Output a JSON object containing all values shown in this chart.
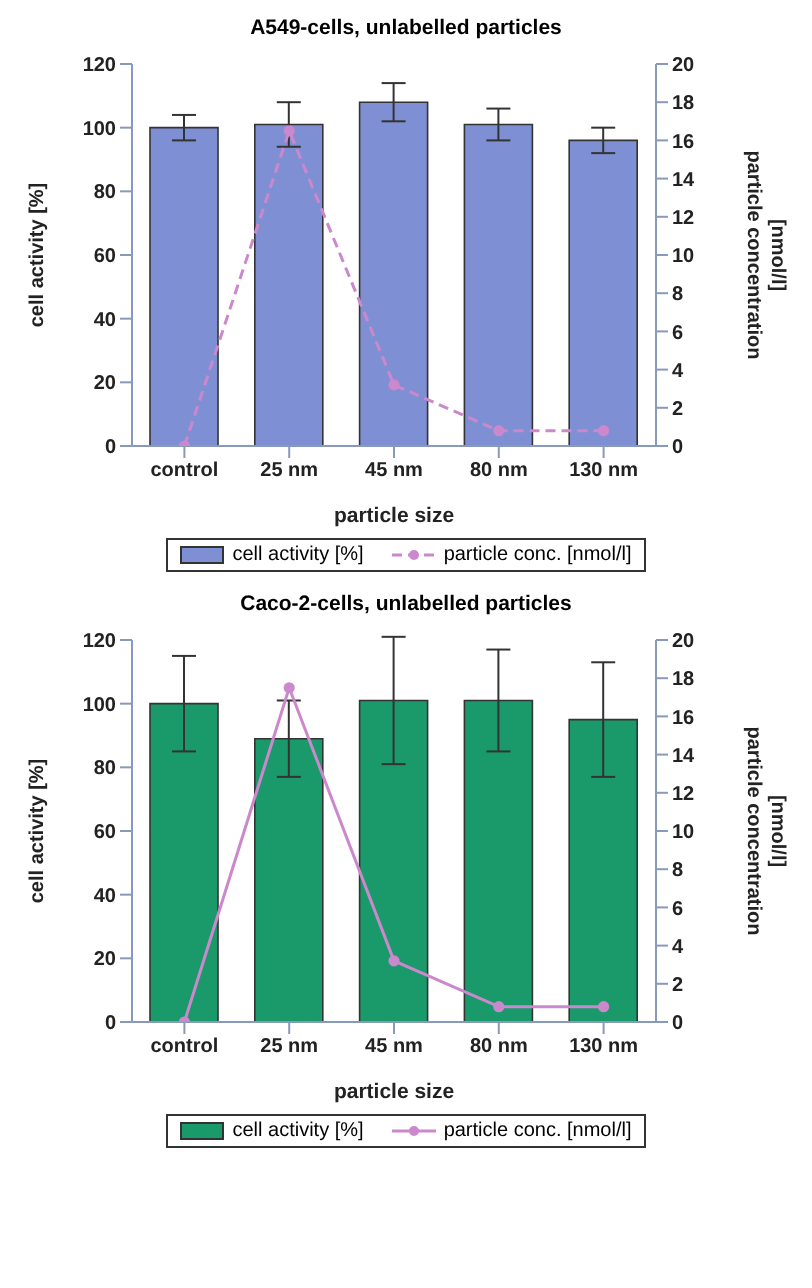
{
  "chart_data": [
    {
      "type": "bar",
      "title": "A549-cells, unlabelled particles",
      "xlabel": "particle size",
      "ylabel": "cell activity [%]",
      "y2label": "particle concentration [nmol/l]",
      "categories": [
        "control",
        "25 nm",
        "45 nm",
        "80 nm",
        "130 nm"
      ],
      "series": [
        {
          "name": "cell activity [%]",
          "color": "#7f8fd4",
          "values": [
            100,
            101,
            108,
            101,
            96
          ],
          "errors": [
            4,
            7,
            6,
            5,
            4
          ]
        },
        {
          "name": "particle conc. [nmol/l]",
          "type": "line",
          "axis": "y2",
          "color": "#cc88cc",
          "values": [
            0,
            16.5,
            3.2,
            0.8,
            0.8
          ],
          "line_style": "dashed",
          "marker": "circle"
        }
      ],
      "ylim": [
        0,
        120
      ],
      "yticks": [
        0,
        20,
        40,
        60,
        80,
        100,
        120
      ],
      "y2lim": [
        0,
        20
      ],
      "y2ticks": [
        0,
        2,
        4,
        6,
        8,
        10,
        12,
        14,
        16,
        18,
        20
      ],
      "legend": "bottom"
    },
    {
      "type": "bar",
      "title": "Caco-2-cells, unlabelled particles",
      "xlabel": "particle size",
      "ylabel": "cell activity [%]",
      "y2label": "particle concentration [nmol/l]",
      "categories": [
        "control",
        "25 nm",
        "45 nm",
        "80 nm",
        "130 nm"
      ],
      "series": [
        {
          "name": "cell activity [%]",
          "color": "#1a9a6a",
          "values": [
            100,
            89,
            101,
            101,
            95
          ],
          "errors": [
            15,
            12,
            20,
            16,
            18
          ]
        },
        {
          "name": "particle conc. [nmol/l]",
          "type": "line",
          "axis": "y2",
          "color": "#cc88cc",
          "values": [
            0,
            17.5,
            3.2,
            0.8,
            0.8
          ],
          "line_style": "solid",
          "marker": "circle"
        }
      ],
      "ylim": [
        0,
        120
      ],
      "yticks": [
        0,
        20,
        40,
        60,
        80,
        100,
        120
      ],
      "y2lim": [
        0,
        20
      ],
      "y2ticks": [
        0,
        2,
        4,
        6,
        8,
        10,
        12,
        14,
        16,
        18,
        20
      ],
      "legend": "bottom"
    }
  ]
}
